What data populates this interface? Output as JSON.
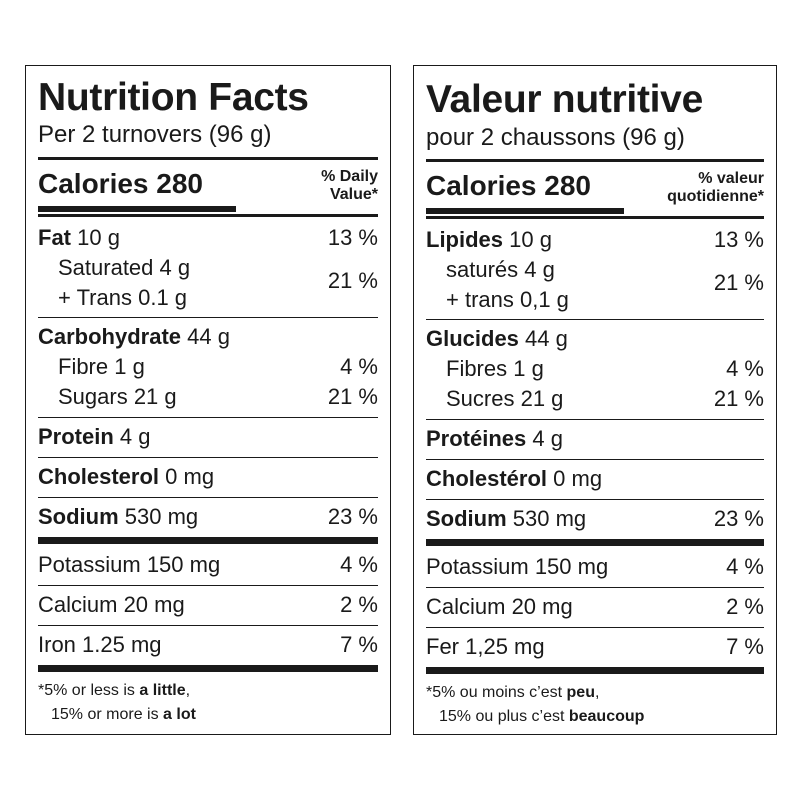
{
  "en": {
    "title": "Nutrition Facts",
    "serving": "Per 2 turnovers (96 g)",
    "calories": "Calories 280",
    "dv_line1": "% Daily",
    "dv_line2": "Value*",
    "fat_name": "Fat",
    "fat_amt": " 10 g",
    "fat_pct": "13 %",
    "sat": "Saturated 4 g",
    "trans": "+ Trans 0.1 g",
    "sat_trans_pct": "21 %",
    "carb_name": "Carbohydrate",
    "carb_amt": " 44 g",
    "fibre": "Fibre 1 g",
    "fibre_pct": "4 %",
    "sugars": "Sugars 21 g",
    "sugars_pct": "21 %",
    "protein_name": "Protein",
    "protein_amt": " 4 g",
    "chol_name": "Cholesterol",
    "chol_amt": " 0 mg",
    "sodium_name": "Sodium",
    "sodium_amt": " 530 mg",
    "sodium_pct": "23 %",
    "potassium": "Potassium 150 mg",
    "potassium_pct": "4 %",
    "calcium": "Calcium 20 mg",
    "calcium_pct": "2 %",
    "iron": "Iron 1.25 mg",
    "iron_pct": "7 %",
    "foot1_pre": "*5% or less is ",
    "foot1_bold": "a little",
    "foot1_post": ",",
    "foot2_pre": "15% or more is ",
    "foot2_bold": "a lot"
  },
  "fr": {
    "title": "Valeur nutritive",
    "serving": "pour 2 chaussons (96 g)",
    "calories": "Calories 280",
    "dv_line1": "% valeur",
    "dv_line2": "quotidienne*",
    "fat_name": "Lipides",
    "fat_amt": " 10 g",
    "fat_pct": "13 %",
    "sat": "saturés 4 g",
    "trans": "+ trans 0,1 g",
    "sat_trans_pct": "21 %",
    "carb_name": "Glucides",
    "carb_amt": " 44 g",
    "fibre": "Fibres 1 g",
    "fibre_pct": "4 %",
    "sugars": "Sucres 21 g",
    "sugars_pct": "21 %",
    "protein_name": "Protéines",
    "protein_amt": " 4 g",
    "chol_name": "Cholestérol",
    "chol_amt": " 0 mg",
    "sodium_name": "Sodium",
    "sodium_amt": " 530 mg",
    "sodium_pct": "23 %",
    "potassium": "Potassium 150 mg",
    "potassium_pct": "4 %",
    "calcium": "Calcium 20 mg",
    "calcium_pct": "2 %",
    "iron": "Fer 1,25 mg",
    "iron_pct": "7 %",
    "foot1_pre": "*5% ou moins c’est ",
    "foot1_bold": "peu",
    "foot1_post": ",",
    "foot2_pre": "15% ou plus c’est ",
    "foot2_bold": "beaucoup"
  }
}
